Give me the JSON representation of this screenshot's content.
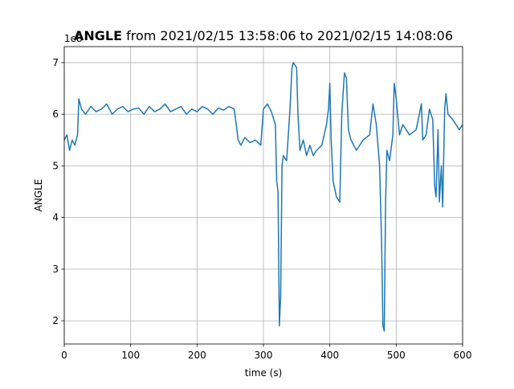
{
  "chart_data": {
    "type": "line",
    "title_bold": "ANGLE",
    "title": "from 2021/02/15 13:58:06 to 2021/02/15 14:08:06",
    "offset_label": "1e8",
    "xlabel": "time (s)",
    "ylabel": "ANGLE",
    "xlim": [
      0,
      600
    ],
    "xticks": [
      0,
      100,
      200,
      300,
      400,
      500,
      600
    ],
    "ylim": [
      1.55,
      7.31
    ],
    "yticks": [
      2,
      3,
      4,
      5,
      6,
      7
    ],
    "grid": true,
    "series": [
      {
        "color": "#1f77b4",
        "x": [
          0,
          4,
          8,
          12,
          16,
          20,
          22,
          26,
          32,
          40,
          48,
          56,
          64,
          72,
          80,
          88,
          96,
          104,
          112,
          120,
          128,
          136,
          144,
          152,
          160,
          168,
          176,
          184,
          192,
          200,
          208,
          216,
          224,
          232,
          240,
          248,
          256,
          262,
          266,
          272,
          280,
          288,
          296,
          300,
          306,
          312,
          318,
          320,
          322,
          324,
          326,
          328,
          330,
          335,
          340,
          343,
          345,
          350,
          352,
          355,
          360,
          365,
          370,
          375,
          380,
          388,
          395,
          398,
          400,
          402,
          405,
          410,
          415,
          418,
          420,
          422,
          425,
          428,
          432,
          440,
          450,
          460,
          465,
          470,
          475,
          478,
          480,
          482,
          484,
          486,
          490,
          495,
          497,
          500,
          505,
          510,
          520,
          530,
          538,
          540,
          545,
          550,
          555,
          558,
          560,
          563,
          565,
          568,
          570,
          573,
          575,
          578,
          585,
          590,
          595,
          600
        ],
        "values": [
          5.5,
          5.6,
          5.3,
          5.5,
          5.4,
          5.6,
          6.3,
          6.1,
          6.0,
          6.15,
          6.05,
          6.1,
          6.2,
          6.0,
          6.1,
          6.15,
          6.05,
          6.1,
          6.12,
          6.0,
          6.15,
          6.05,
          6.1,
          6.2,
          6.05,
          6.1,
          6.15,
          6.0,
          6.1,
          6.05,
          6.15,
          6.1,
          6.0,
          6.12,
          6.08,
          6.15,
          6.1,
          5.5,
          5.4,
          5.55,
          5.45,
          5.5,
          5.4,
          6.1,
          6.2,
          6.05,
          5.8,
          4.7,
          4.5,
          1.9,
          2.5,
          5.0,
          5.2,
          5.1,
          6.1,
          6.9,
          7.0,
          6.9,
          6.0,
          5.3,
          5.5,
          5.2,
          5.4,
          5.2,
          5.3,
          5.4,
          5.8,
          6.1,
          6.6,
          5.5,
          4.7,
          4.4,
          4.3,
          6.0,
          6.4,
          6.8,
          6.7,
          5.7,
          5.5,
          5.3,
          5.5,
          5.6,
          6.2,
          5.8,
          5.0,
          3.5,
          1.9,
          1.8,
          4.3,
          5.3,
          5.1,
          5.6,
          6.6,
          6.3,
          5.6,
          5.8,
          5.6,
          5.7,
          6.2,
          5.5,
          5.6,
          6.1,
          5.9,
          4.6,
          4.4,
          5.7,
          4.3,
          5.0,
          4.2,
          6.1,
          6.4,
          6.0,
          5.9,
          5.8,
          5.7,
          5.8
        ]
      }
    ]
  }
}
